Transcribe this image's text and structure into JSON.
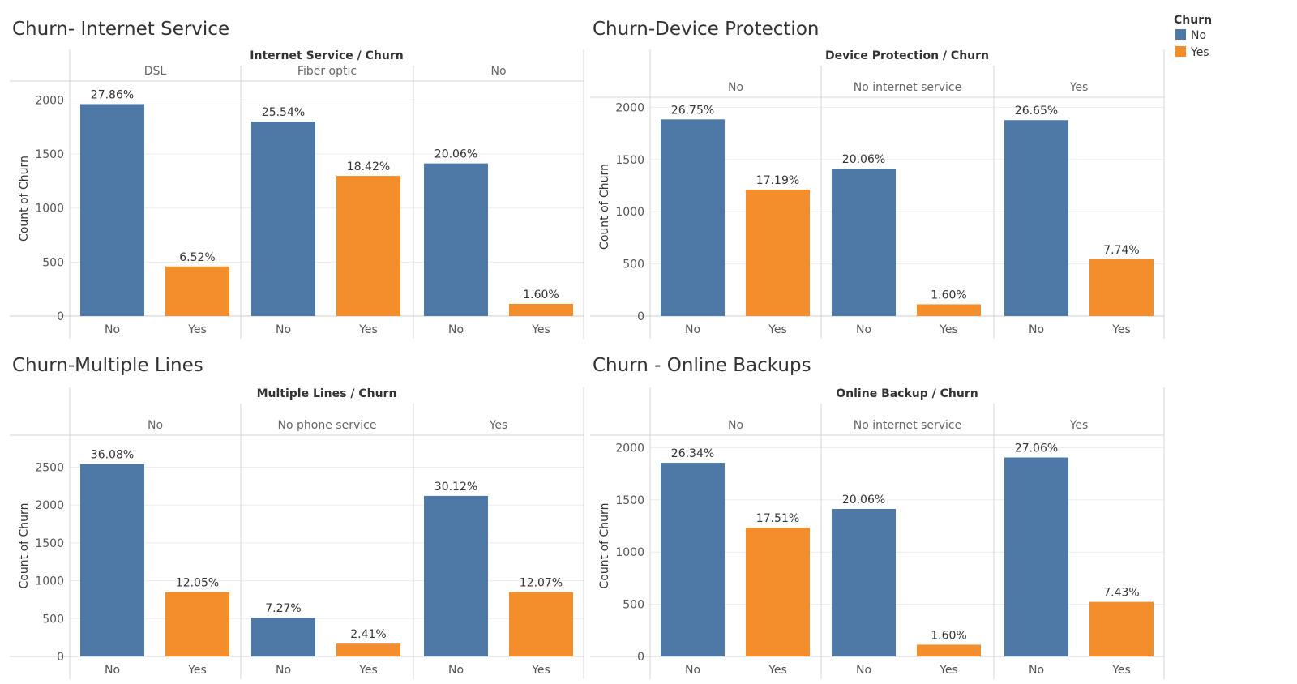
{
  "colors": {
    "No": "#4e79a7",
    "Yes": "#f28e2b"
  },
  "legend": {
    "title": "Churn",
    "items": [
      "No",
      "Yes"
    ]
  },
  "chart_data": [
    {
      "type": "bar",
      "title": "Churn- Internet Service",
      "header": "Internet Service  /  Churn",
      "ylabel": "Count of Churn",
      "ylim": [
        0,
        2200
      ],
      "yticks": [
        0,
        500,
        1000,
        1500,
        2000
      ],
      "categories": [
        "No",
        "Yes"
      ],
      "panels": [
        {
          "name": "DSL",
          "values": [
            1962,
            459
          ],
          "labels": [
            "27.86%",
            "6.52%"
          ]
        },
        {
          "name": "Fiber optic",
          "values": [
            1799,
            1297
          ],
          "labels": [
            "25.54%",
            "18.42%"
          ]
        },
        {
          "name": "No",
          "values": [
            1413,
            113
          ],
          "labels": [
            "20.06%",
            "1.60%"
          ]
        }
      ]
    },
    {
      "type": "bar",
      "title": "Churn-Device Protection",
      "header": "Device Protection  /  Churn",
      "ylabel": "Count of Churn",
      "ylim": [
        0,
        2100
      ],
      "yticks": [
        0,
        500,
        1000,
        1500,
        2000
      ],
      "categories": [
        "No",
        "Yes"
      ],
      "panels": [
        {
          "name": "No",
          "values": [
            1884,
            1211
          ],
          "labels": [
            "26.75%",
            "17.19%"
          ]
        },
        {
          "name": "No internet service",
          "values": [
            1413,
            113
          ],
          "labels": [
            "20.06%",
            "1.60%"
          ]
        },
        {
          "name": "Yes",
          "values": [
            1877,
            545
          ],
          "labels": [
            "26.65%",
            "7.74%"
          ]
        }
      ]
    },
    {
      "type": "bar",
      "title": "Churn-Multiple Lines",
      "header": "Multiple Lines  /  Churn",
      "ylabel": "Count of Churn",
      "ylim": [
        0,
        2800
      ],
      "yticks": [
        0,
        500,
        1000,
        1500,
        2000,
        2500
      ],
      "categories": [
        "No",
        "Yes"
      ],
      "panels": [
        {
          "name": "No",
          "values": [
            2541,
            849
          ],
          "labels": [
            "36.08%",
            "12.05%"
          ]
        },
        {
          "name": "No phone service",
          "values": [
            512,
            170
          ],
          "labels": [
            "7.27%",
            "2.41%"
          ]
        },
        {
          "name": "Yes",
          "values": [
            2121,
            850
          ],
          "labels": [
            "30.12%",
            "12.07%"
          ]
        }
      ]
    },
    {
      "type": "bar",
      "title": "Churn - Online Backups",
      "header": "Online Backup  /  Churn",
      "ylabel": "Count of Churn",
      "ylim": [
        0,
        2100
      ],
      "yticks": [
        0,
        500,
        1000,
        1500,
        2000
      ],
      "categories": [
        "No",
        "Yes"
      ],
      "panels": [
        {
          "name": "No",
          "values": [
            1855,
            1233
          ],
          "labels": [
            "26.34%",
            "17.51%"
          ]
        },
        {
          "name": "No internet service",
          "values": [
            1413,
            113
          ],
          "labels": [
            "20.06%",
            "1.60%"
          ]
        },
        {
          "name": "Yes",
          "values": [
            1906,
            523
          ],
          "labels": [
            "27.06%",
            "7.43%"
          ]
        }
      ]
    }
  ]
}
